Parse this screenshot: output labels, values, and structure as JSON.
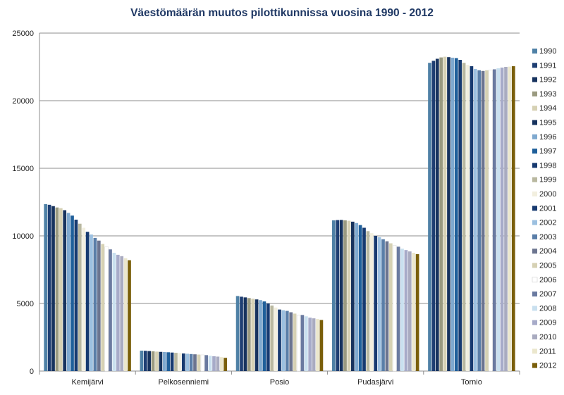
{
  "chart_data": {
    "type": "bar",
    "title": "Väestömäärän muutos pilottikunnissa vuosina 1990 - 2012",
    "xlabel": "",
    "ylabel": "",
    "ylim": [
      0,
      25000
    ],
    "yticks": [
      "0",
      "5000",
      "10000",
      "15000",
      "20000",
      "25000"
    ],
    "grid": true,
    "legend_position": "right",
    "categories": [
      "Kemijärvi",
      "Pelkosenniemi",
      "Posio",
      "Pudasjärvi",
      "Tornio"
    ],
    "series": [
      {
        "name": "1990",
        "color": "#4f81a6",
        "values": [
          12350,
          1510,
          5550,
          11150,
          22800
        ]
      },
      {
        "name": "1991",
        "color": "#1f3f73",
        "values": [
          12300,
          1500,
          5500,
          11170,
          22950
        ]
      },
      {
        "name": "1992",
        "color": "#17335e",
        "values": [
          12200,
          1480,
          5450,
          11180,
          23100
        ]
      },
      {
        "name": "1993",
        "color": "#9a9a80",
        "values": [
          12100,
          1460,
          5400,
          11150,
          23200
        ]
      },
      {
        "name": "1994",
        "color": "#d6d1b4",
        "values": [
          12050,
          1440,
          5350,
          11120,
          23250
        ]
      },
      {
        "name": "1995",
        "color": "#17335e",
        "values": [
          11900,
          1420,
          5300,
          11050,
          23220
        ]
      },
      {
        "name": "1996",
        "color": "#7fa9cf",
        "values": [
          11700,
          1410,
          5250,
          10950,
          23180
        ]
      },
      {
        "name": "1997",
        "color": "#1f5f9a",
        "values": [
          11500,
          1390,
          5150,
          10800,
          23150
        ]
      },
      {
        "name": "1998",
        "color": "#173a70",
        "values": [
          11200,
          1370,
          5000,
          10600,
          23020
        ]
      },
      {
        "name": "1999",
        "color": "#b9b8a0",
        "values": [
          10900,
          1350,
          4850,
          10350,
          22800
        ]
      },
      {
        "name": "2000",
        "color": "#f2efdf",
        "values": [
          10600,
          1330,
          4700,
          10200,
          22650
        ]
      },
      {
        "name": "2001",
        "color": "#173a70",
        "values": [
          10300,
          1300,
          4550,
          10000,
          22550
        ]
      },
      {
        "name": "2002",
        "color": "#9cc0e0",
        "values": [
          10100,
          1280,
          4500,
          9900,
          22350
        ]
      },
      {
        "name": "2003",
        "color": "#5a7ea8",
        "values": [
          9850,
          1260,
          4450,
          9750,
          22250
        ]
      },
      {
        "name": "2004",
        "color": "#6c7590",
        "values": [
          9650,
          1240,
          4350,
          9600,
          22200
        ]
      },
      {
        "name": "2005",
        "color": "#d6d1b4",
        "values": [
          9400,
          1220,
          4250,
          9450,
          22250
        ]
      },
      {
        "name": "2006",
        "color": "#ffffff",
        "values": [
          9200,
          1200,
          4150,
          9300,
          22280
        ]
      },
      {
        "name": "2007",
        "color": "#6a7aa0",
        "values": [
          9000,
          1180,
          4150,
          9200,
          22320
        ]
      },
      {
        "name": "2008",
        "color": "#c9e0ef",
        "values": [
          8750,
          1130,
          4050,
          9050,
          22400
        ]
      },
      {
        "name": "2009",
        "color": "#a7abc9",
        "values": [
          8600,
          1100,
          3950,
          8950,
          22450
        ]
      },
      {
        "name": "2010",
        "color": "#a9abc0",
        "values": [
          8500,
          1070,
          3900,
          8850,
          22500
        ]
      },
      {
        "name": "2011",
        "color": "#ebe7cd",
        "values": [
          8350,
          1030,
          3850,
          8750,
          22520
        ]
      },
      {
        "name": "2012",
        "color": "#7a5f0a",
        "values": [
          8200,
          980,
          3780,
          8650,
          22550
        ]
      }
    ]
  }
}
